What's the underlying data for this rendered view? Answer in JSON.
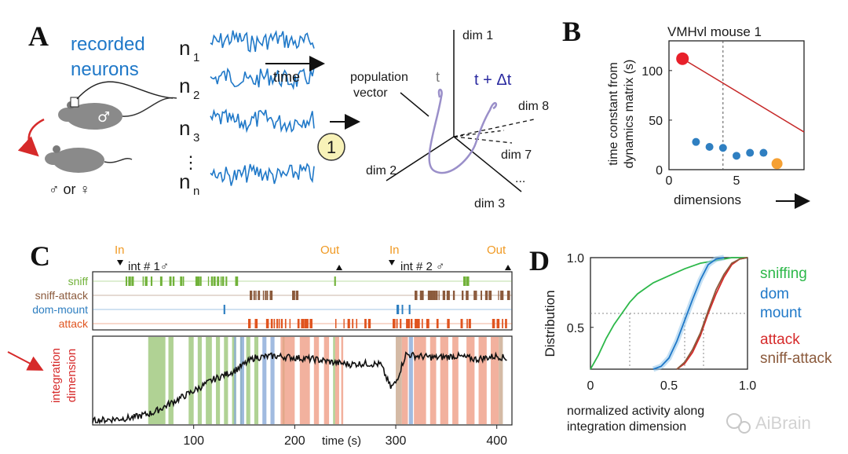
{
  "panels": {
    "a": "A",
    "b": "B",
    "c": "C",
    "d": "D"
  },
  "panel_a": {
    "title_line1": "recorded",
    "title_line2": "neurons",
    "neurons": [
      {
        "letter": "n",
        "sub": "1"
      },
      {
        "letter": "n",
        "sub": "2"
      },
      {
        "letter": "n",
        "sub": "3"
      },
      {
        "letter": "n",
        "sub": "n"
      }
    ],
    "ellipsis": "⋮",
    "time_label": "time",
    "step_label": "1",
    "sex_label": "♂ or ♀",
    "male_symbol": "♂",
    "pop_label_1": "population",
    "pop_label_2": "vector",
    "t_label": "t",
    "tdt_label": "t + Δt",
    "dims": [
      "dim 1",
      "dim 2",
      "dim 3",
      "dim 7",
      "dim 8",
      "..."
    ]
  },
  "panel_b": {
    "title": "VMHvl mouse 1",
    "ylabel_1": "time constant from",
    "ylabel_2": "dynamics matrix (s)",
    "xlabel": "dimensions",
    "colors": {
      "points": "#2f7fc1",
      "first": "#e8202a",
      "last": "#f5a033",
      "line": "#c62828"
    }
  },
  "panel_c": {
    "rows": [
      "sniff",
      "sniff-attack",
      "dom-mount",
      "attack"
    ],
    "row_colors": [
      "#71b23a",
      "#8b5a3c",
      "#2f7fc1",
      "#e0541f"
    ],
    "in_label": "In",
    "out_label": "Out",
    "int1": "int # 1♂",
    "int2": "int # 2 ♂",
    "ylabel_1": "integration",
    "ylabel_2": "dimension",
    "xlabel": "time (s)",
    "colors": {
      "in_out": "#f09a24",
      "ylabel": "#d62a2a"
    }
  },
  "panel_d": {
    "ylabel": "Distribution",
    "xlabel_1": "normalized activity along",
    "xlabel_2": "integration dimension",
    "legend": [
      {
        "label": "sniffing",
        "color": "#2db84a"
      },
      {
        "label": "dom",
        "color": "#1f78c8"
      },
      {
        "label": "mount",
        "color": "#1f78c8"
      },
      {
        "label": "attack",
        "color": "#d62a2a"
      },
      {
        "label": "sniff-attack",
        "color": "#8b5a3c"
      }
    ]
  },
  "watermark": "AiBrain",
  "chart_data": [
    {
      "type": "scatter",
      "title": "VMHvl mouse 1",
      "xlabel": "dimensions",
      "ylabel": "time constant from dynamics matrix (s)",
      "x_ticks": [
        "0",
        "5"
      ],
      "y_ticks": [
        "0",
        "50",
        "100"
      ],
      "xlim": [
        0,
        10
      ],
      "ylim": [
        0,
        130
      ],
      "series": [
        {
          "x": [
            1,
            2,
            3,
            4,
            5,
            6,
            7,
            8
          ],
          "y": [
            112,
            28,
            23,
            22,
            14,
            17,
            17,
            6
          ]
        }
      ],
      "reference_line": {
        "x": [
          1,
          10
        ],
        "y": [
          112,
          38
        ]
      },
      "dashed_x": 4
    },
    {
      "type": "line",
      "xlabel": "time (s)",
      "x_ticks": [
        "100",
        "200",
        "300",
        "400"
      ],
      "xlim": [
        0,
        415
      ],
      "series": [
        {
          "x": [
            0,
            20,
            40,
            60,
            80,
            100,
            120,
            140,
            150,
            160,
            180,
            200,
            220,
            240,
            255,
            270,
            285,
            295,
            300,
            310,
            320,
            340,
            360,
            380,
            400,
            410
          ],
          "y": [
            0.02,
            0.04,
            0.06,
            0.12,
            0.25,
            0.38,
            0.52,
            0.62,
            0.7,
            0.78,
            0.8,
            0.78,
            0.76,
            0.72,
            0.7,
            0.71,
            0.7,
            0.42,
            0.48,
            0.82,
            0.8,
            0.78,
            0.8,
            0.76,
            0.8,
            0.77
          ]
        }
      ]
    },
    {
      "type": "line",
      "xlabel": "normalized activity along integration dimension",
      "ylabel": "Distribution",
      "x_ticks": [
        "0",
        "0.5",
        "1.0"
      ],
      "y_ticks": [
        "0.5",
        "1.0"
      ],
      "xlim": [
        0,
        1
      ],
      "ylim": [
        0.2,
        1
      ],
      "series": [
        {
          "name": "sniffing",
          "x": [
            0,
            0.05,
            0.1,
            0.15,
            0.2,
            0.25,
            0.3,
            0.35,
            0.4,
            0.5,
            0.6,
            0.7,
            0.8,
            0.9,
            1.0
          ],
          "y": [
            0.2,
            0.3,
            0.42,
            0.52,
            0.6,
            0.68,
            0.74,
            0.78,
            0.82,
            0.87,
            0.92,
            0.96,
            0.98,
            1.0,
            1.0
          ]
        },
        {
          "name": "dom mount",
          "x": [
            0.4,
            0.45,
            0.5,
            0.55,
            0.6,
            0.65,
            0.7,
            0.75,
            0.8,
            0.85
          ],
          "y": [
            0.2,
            0.22,
            0.28,
            0.4,
            0.55,
            0.7,
            0.84,
            0.95,
            0.99,
            1.0
          ]
        },
        {
          "name": "attack",
          "x": [
            0.55,
            0.6,
            0.65,
            0.7,
            0.75,
            0.8,
            0.85,
            0.9,
            0.95,
            1.0
          ],
          "y": [
            0.2,
            0.24,
            0.32,
            0.44,
            0.6,
            0.74,
            0.86,
            0.95,
            0.99,
            1.0
          ]
        },
        {
          "name": "sniff-attack",
          "x": [
            0.55,
            0.6,
            0.65,
            0.7,
            0.75,
            0.8,
            0.85,
            0.9,
            0.95,
            1.0
          ],
          "y": [
            0.2,
            0.25,
            0.34,
            0.46,
            0.62,
            0.77,
            0.88,
            0.96,
            0.99,
            1.0
          ]
        }
      ],
      "guides": {
        "y": 0.6,
        "x": [
          0.25,
          0.6,
          0.72
        ]
      }
    }
  ]
}
